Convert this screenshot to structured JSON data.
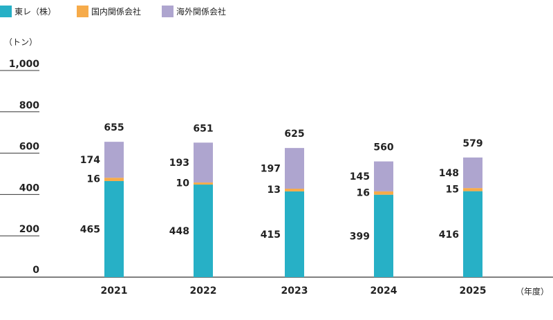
{
  "colors": {
    "toray": "#27b0c6",
    "domestic": "#f6ab4a",
    "overseas": "#aea5cf",
    "axis": "#333333"
  },
  "unit_label": "（トン）",
  "fiscal_year_label": "（年度）",
  "chart_data": {
    "type": "bar",
    "stacked": true,
    "categories": [
      "2021",
      "2022",
      "2023",
      "2024",
      "2025"
    ],
    "series": [
      {
        "name": "東レ（株）",
        "values": [
          465,
          448,
          415,
          399,
          416
        ]
      },
      {
        "name": "国内関係会社",
        "values": [
          16,
          10,
          13,
          16,
          15
        ]
      },
      {
        "name": "海外関係会社",
        "values": [
          174,
          193,
          197,
          145,
          148
        ]
      }
    ],
    "totals": [
      655,
      651,
      625,
      560,
      579
    ],
    "ylim": [
      0,
      1000
    ],
    "yticks": [
      0,
      200,
      400,
      600,
      800,
      1000
    ],
    "ytick_labels": [
      "0",
      "200",
      "400",
      "600",
      "800",
      "1,000"
    ],
    "legend_position": "top-left"
  }
}
